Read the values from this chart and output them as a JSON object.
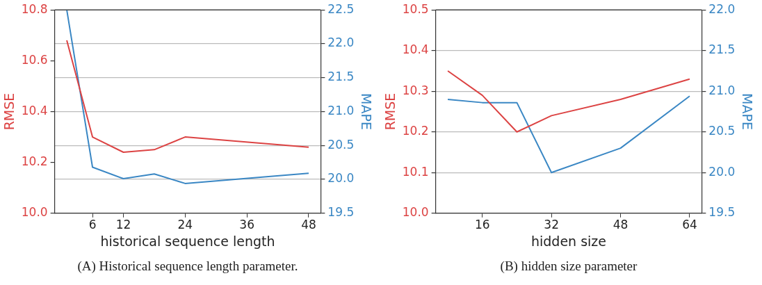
{
  "chart_data": [
    {
      "type": "line",
      "xlabel": "historical sequence length",
      "ylabel": "RMSE",
      "y2label": "MAPE",
      "x": [
        1,
        6,
        12,
        18,
        24,
        48
      ],
      "xlim": [
        -1.35,
        50.35
      ],
      "xticks": [
        6,
        12,
        24,
        36,
        48
      ],
      "ylim": [
        10.0,
        10.8
      ],
      "yticks": [
        {
          "value": 10.0,
          "label": "10.0"
        },
        {
          "value": 10.2,
          "label": "10.2"
        },
        {
          "value": 10.4,
          "label": "10.4"
        },
        {
          "value": 10.6,
          "label": "10.6"
        },
        {
          "value": 10.8,
          "label": "10.8"
        }
      ],
      "y2lim": [
        19.5,
        22.5
      ],
      "y2ticks": [
        19.5,
        {
          "value": 20.0,
          "label": "20.0"
        },
        20.5,
        {
          "value": 21.0,
          "label": "21.0"
        },
        21.5,
        {
          "value": 22.0,
          "label": "22.0"
        },
        22.5
      ],
      "grid": "y2",
      "series": [
        {
          "color": "#dc4343",
          "values": [
            10.68,
            10.3,
            10.24,
            10.25,
            10.3,
            10.26
          ]
        },
        {
          "color": "#3a87c4",
          "axis": "y2",
          "values": [
            22.5,
            20.18,
            20.01,
            20.08,
            19.94,
            20.09
          ]
        }
      ],
      "annotations": [
        "(A) Historical sequence length parameter."
      ]
    },
    {
      "type": "line",
      "xlabel": "hidden size",
      "ylabel": "RMSE",
      "y2label": "MAPE",
      "x": [
        8,
        16,
        24,
        32,
        48,
        64
      ],
      "xlim": [
        5.2,
        66.8
      ],
      "xticks": [
        16,
        32,
        48,
        64
      ],
      "ylim": [
        10.0,
        10.5
      ],
      "yticks": [
        {
          "value": 10.0,
          "label": "10.0"
        },
        10.1,
        10.2,
        10.3,
        10.4,
        10.5
      ],
      "y2lim": [
        19.5,
        22.0
      ],
      "y2ticks": [
        19.5,
        {
          "value": 20.0,
          "label": "20.0"
        },
        20.5,
        {
          "value": 21.0,
          "label": "21.0"
        },
        21.5,
        {
          "value": 22.0,
          "label": "22.0"
        }
      ],
      "grid": "y2",
      "series": [
        {
          "color": "#dc4343",
          "values": [
            10.35,
            10.29,
            10.2,
            10.24,
            10.28,
            10.33
          ]
        },
        {
          "color": "#3a87c4",
          "axis": "y2",
          "values": [
            20.9,
            20.86,
            20.86,
            20.0,
            20.3,
            20.94
          ]
        }
      ],
      "annotations": [
        "(B) hidden size parameter"
      ]
    }
  ]
}
